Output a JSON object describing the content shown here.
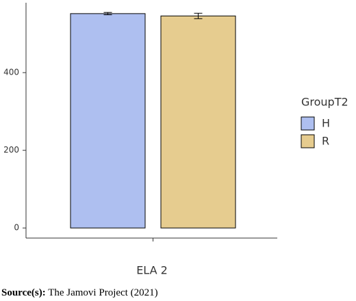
{
  "chart_data": {
    "type": "bar",
    "x_label": "ELA 2",
    "categories": [
      "ELA 2"
    ],
    "series": [
      {
        "name": "H",
        "color": "#aebff0",
        "values": [
          552
        ],
        "errors": [
          3
        ]
      },
      {
        "name": "R",
        "color": "#e6cc8f",
        "values": [
          546
        ],
        "errors": [
          7
        ]
      }
    ],
    "ylim": [
      -26,
      580
    ],
    "yticks": [
      0,
      200,
      400
    ],
    "legend_title": "GroupT2",
    "legend": "right",
    "grid": false,
    "source_label": "Source(s):",
    "source": "The Jamovi Project (2021)"
  }
}
